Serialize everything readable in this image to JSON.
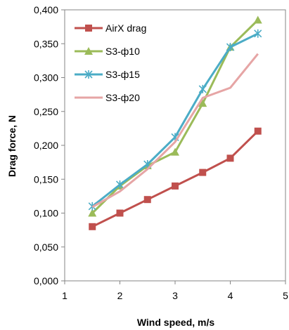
{
  "chart_data": {
    "type": "line",
    "title": "",
    "xlabel": "Wind speed, m/s",
    "ylabel": "Drag force, N",
    "xlim": [
      1,
      5
    ],
    "ylim": [
      0,
      0.4
    ],
    "xticks": [
      1,
      2,
      3,
      4,
      5
    ],
    "xtick_labels": [
      "1",
      "2",
      "3",
      "4",
      "5"
    ],
    "yticks": [
      0,
      0.05,
      0.1,
      0.15,
      0.2,
      0.25,
      0.3,
      0.35,
      0.4
    ],
    "ytick_labels": [
      "0,000",
      "0,050",
      "0,100",
      "0,150",
      "0,200",
      "0,250",
      "0,300",
      "0,350",
      "0,400"
    ],
    "grid": false,
    "legend_position": "top-left",
    "x": [
      1.5,
      2,
      2.5,
      3,
      3.5,
      4,
      4.5
    ],
    "series": [
      {
        "name": "AirX drag",
        "color": "#c0504d",
        "marker": "square",
        "values": [
          0.08,
          0.1,
          0.12,
          0.14,
          0.16,
          0.181,
          0.221
        ]
      },
      {
        "name": "S3-ф10",
        "color": "#9bbb59",
        "marker": "triangle",
        "values": [
          0.1,
          0.14,
          0.17,
          0.19,
          0.262,
          0.345,
          0.385
        ]
      },
      {
        "name": "S3-ф15",
        "color": "#4bacc6",
        "marker": "star",
        "values": [
          0.11,
          0.142,
          0.172,
          0.212,
          0.283,
          0.345,
          0.365
        ]
      },
      {
        "name": "S3-ф20",
        "color": "#e6a5a5",
        "marker": "none",
        "values": [
          0.109,
          0.132,
          0.165,
          0.205,
          0.27,
          0.285,
          0.335
        ]
      }
    ]
  }
}
